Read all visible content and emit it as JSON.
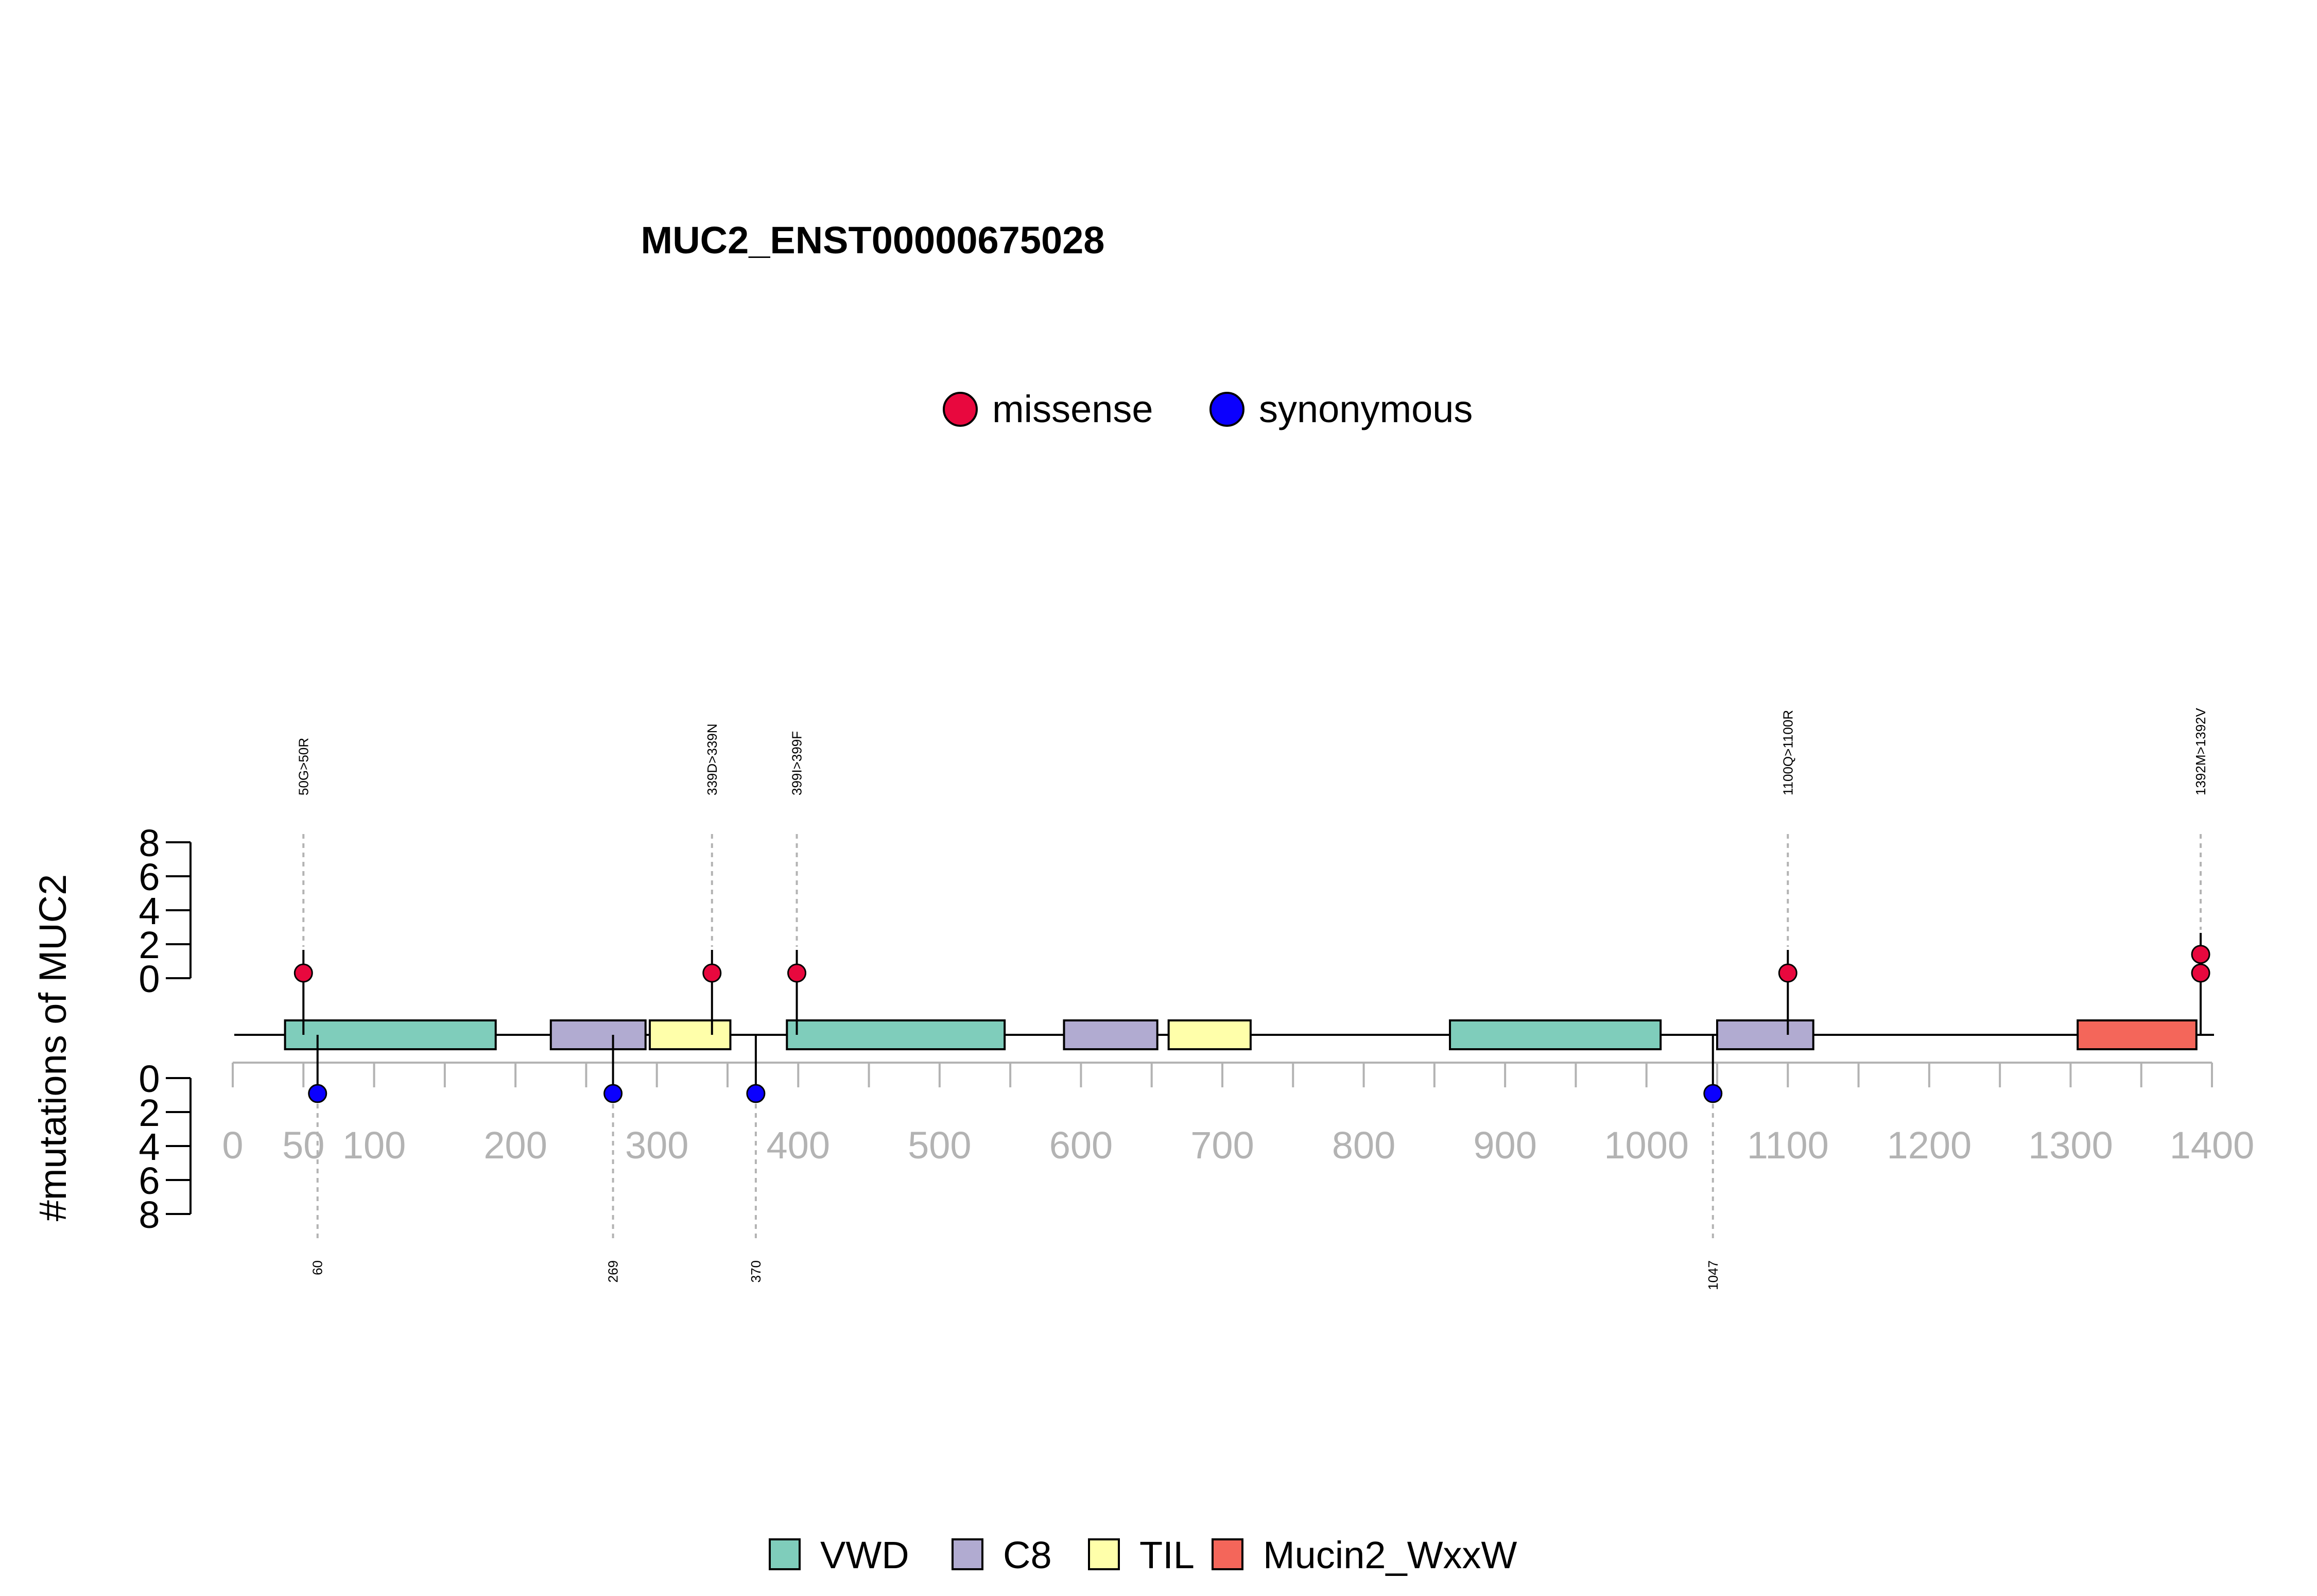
{
  "chart_data": {
    "type": "lollipop",
    "title": "MUC2_ENST00000675028",
    "ylabel": "#mutations of MUC2",
    "protein_length": 1400,
    "xlim": [
      0,
      1400
    ],
    "x_ticks": [
      0,
      50,
      100,
      200,
      300,
      400,
      500,
      600,
      700,
      800,
      900,
      1000,
      1100,
      1200,
      1300,
      1400
    ],
    "x_tick_labels": [
      "0",
      "50",
      "100",
      "200",
      "300",
      "400",
      "500",
      "600",
      "700",
      "800",
      "900",
      "1000",
      "1100",
      "1200",
      "1300",
      "1400"
    ],
    "y_ticks_upper": [
      0,
      2,
      4,
      6,
      8
    ],
    "y_ticks_lower": [
      0,
      2,
      4,
      6,
      8
    ],
    "ylim": [
      0,
      8
    ],
    "mutation_legend": [
      {
        "name": "missense",
        "color": "#e8083e"
      },
      {
        "name": "synonymous",
        "color": "#0b00fe"
      }
    ],
    "domain_legend": [
      {
        "name": "VWD",
        "color": "#7fcdbb"
      },
      {
        "name": "C8",
        "color": "#b1abd1"
      },
      {
        "name": "TIL",
        "color": "#ffffaa"
      },
      {
        "name": "Mucin2_WxxW",
        "color": "#f4665a"
      }
    ],
    "domains": [
      {
        "name": "VWD",
        "start": 37,
        "end": 186
      },
      {
        "name": "C8",
        "start": 225,
        "end": 292
      },
      {
        "name": "TIL",
        "start": 295,
        "end": 352
      },
      {
        "name": "VWD",
        "start": 392,
        "end": 546
      },
      {
        "name": "C8",
        "start": 588,
        "end": 654
      },
      {
        "name": "TIL",
        "start": 662,
        "end": 720
      },
      {
        "name": "VWD",
        "start": 861,
        "end": 1010
      },
      {
        "name": "C8",
        "start": 1050,
        "end": 1118
      },
      {
        "name": "Mucin2_WxxW",
        "start": 1305,
        "end": 1389
      }
    ],
    "mutations_upper": [
      {
        "position": 50,
        "label": "50G>50R",
        "type": "missense",
        "count": 1
      },
      {
        "position": 339,
        "label": "339D>339N",
        "type": "missense",
        "count": 1
      },
      {
        "position": 399,
        "label": "399I>399F",
        "type": "missense",
        "count": 1
      },
      {
        "position": 1100,
        "label": "1100Q>1100R",
        "type": "missense",
        "count": 1
      },
      {
        "position": 1392,
        "label": "1392M>1392V",
        "type": "missense",
        "count": 2
      }
    ],
    "mutations_lower": [
      {
        "position": 60,
        "label": "60",
        "type": "synonymous",
        "count": 1
      },
      {
        "position": 269,
        "label": "269",
        "type": "synonymous",
        "count": 1
      },
      {
        "position": 370,
        "label": "370",
        "type": "synonymous",
        "count": 1
      },
      {
        "position": 1047,
        "label": "1047",
        "type": "synonymous",
        "count": 1
      }
    ]
  }
}
